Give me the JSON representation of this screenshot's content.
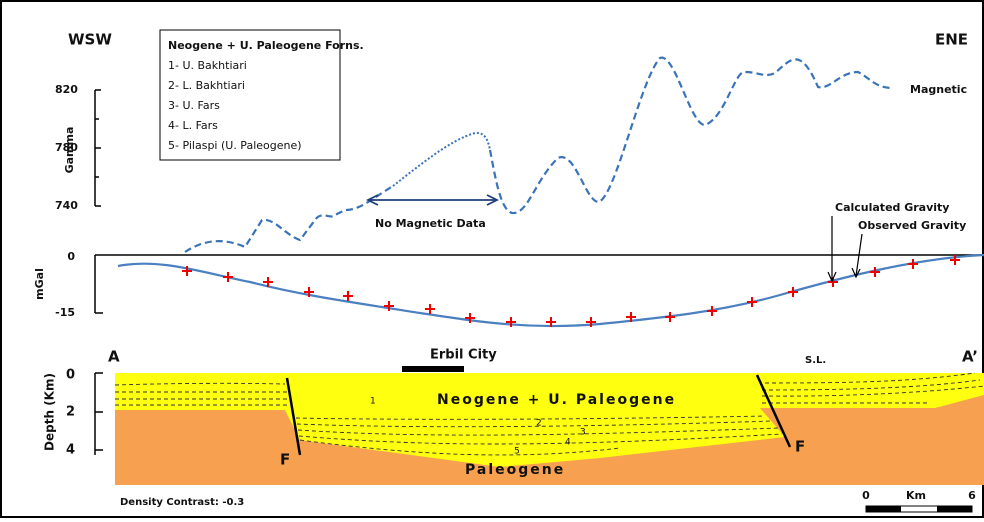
{
  "header": {
    "left": "WSW",
    "right": "ENE"
  },
  "legend": {
    "title": "Neogene + U. Paleogene Forns.",
    "items": [
      "1- U. Bakhtiari",
      "2- L. Bakhtiari",
      "3- U. Fars",
      "4- L. Fars",
      "5- Pilaspi (U. Paleogene)"
    ]
  },
  "magnetic": {
    "axis_label": "Gamma",
    "ticks": [
      "820",
      "780",
      "740"
    ],
    "series_label": "Magnetic",
    "gap_label": "No Magnetic Data"
  },
  "gravity": {
    "axis_label": "mGal",
    "ticks": [
      "0",
      "-15"
    ],
    "labels": [
      "Calculated Gravity",
      "Observed Gravity"
    ]
  },
  "section": {
    "start": "A",
    "end": "A’",
    "city": "Erbil City",
    "sea_level": "S.L.",
    "axis_label": "Depth (Km)",
    "ticks": [
      "0",
      "2",
      "4"
    ],
    "units": [
      "Neogene + U. Paleogene",
      "Paleogene"
    ],
    "layer_numbers": [
      "1",
      "2",
      "3",
      "4",
      "5"
    ],
    "fault": "F",
    "density": "Density Contrast: -0.3"
  },
  "scale": {
    "ticks": [
      "0",
      "6"
    ],
    "unit": "Km"
  }
}
